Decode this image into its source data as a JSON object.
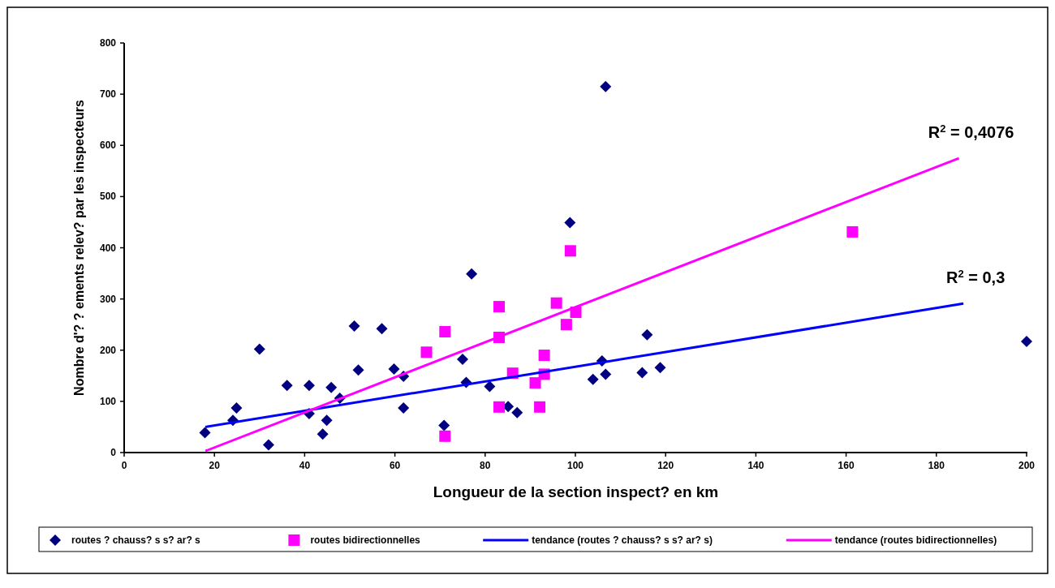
{
  "chart_data": {
    "type": "scatter",
    "xlabel": "Longueur de la section inspect?  en km",
    "ylabel": "Nombre d'?  ? ements relev?  par les inspecteurs",
    "xlim": [
      0,
      200
    ],
    "xticks": [
      0,
      20,
      40,
      60,
      80,
      100,
      120,
      140,
      160,
      180,
      200
    ],
    "ylim": [
      0,
      800
    ],
    "yticks": [
      0,
      100,
      200,
      300,
      400,
      500,
      600,
      700,
      800
    ],
    "grid": false,
    "legend": "bottom",
    "series": [
      {
        "name": "routes ? chauss? s s? ar? s",
        "color": "#000080",
        "marker": "diamond",
        "x": [
          17.9,
          24.1,
          24.9,
          30,
          32,
          36.1,
          41,
          41,
          44,
          44.9,
          45.9,
          47.8,
          51,
          51.9,
          57.1,
          59.8,
          61.9,
          61.9,
          70.9,
          75,
          75.8,
          77,
          81,
          85.1,
          87.1,
          98.8,
          106.7,
          105.9,
          103.9,
          106.7,
          115.9,
          114.8,
          118.8,
          200
        ],
        "values": [
          39,
          63,
          87,
          202,
          15,
          131,
          131,
          76,
          36,
          63,
          127,
          106,
          247,
          161,
          242,
          163,
          149,
          87,
          53,
          182,
          137,
          349,
          129,
          90,
          78,
          449,
          715,
          179,
          143,
          153,
          230,
          156,
          166,
          217
        ]
      },
      {
        "name": "routes bidirectionnelles",
        "color": "#ff00ff",
        "marker": "square",
        "x": [
          67,
          71.1,
          71.1,
          83.1,
          83.1,
          83.1,
          86.1,
          91.1,
          92.1,
          93.1,
          93.1,
          95.8,
          98,
          100.1,
          98.9,
          161.4
        ],
        "values": [
          196,
          236,
          32,
          285,
          225,
          89,
          155,
          136,
          89,
          190,
          153,
          292,
          250,
          274,
          394,
          431
        ]
      },
      {
        "name": "tendance (routes ? chauss? s s? ar? s)",
        "type": "line",
        "color": "#0000ff",
        "marker": "none",
        "x": [
          18,
          186
        ],
        "values": [
          50,
          291
        ]
      },
      {
        "name": "tendance (routes bidirectionnelles)",
        "type": "line",
        "color": "#ff00ff",
        "marker": "none",
        "x": [
          18,
          185
        ],
        "values": [
          3,
          575
        ]
      }
    ],
    "annotations": [
      "R$^{2}$ = 0,4076",
      "R$^{2}$ = 0,3"
    ]
  }
}
